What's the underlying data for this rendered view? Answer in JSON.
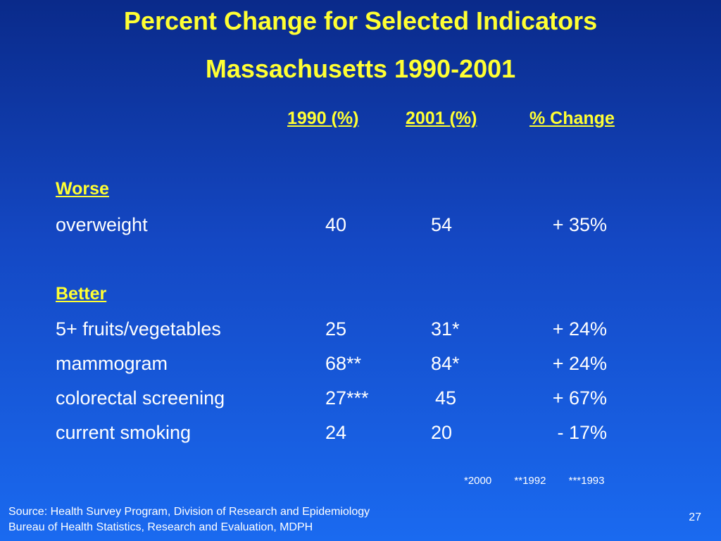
{
  "title_line1": "Percent Change for Selected Indicators",
  "title_line2": "Massachusetts 1990-2001",
  "columns": {
    "c1990": "1990 (%)",
    "c2001": "2001 (%)",
    "change": "% Change"
  },
  "sections": [
    {
      "heading": "Worse",
      "rows": [
        {
          "label": "overweight",
          "v1990": "40",
          "v2001": "54",
          "change": "+ 35%"
        }
      ]
    },
    {
      "heading": "Better",
      "rows": [
        {
          "label": "5+ fruits/vegetables",
          "v1990": "25",
          "v2001": "31*",
          "change": "+ 24%"
        },
        {
          "label": "mammogram",
          "v1990": "68**",
          "v2001": "84*",
          "change": "+ 24%"
        },
        {
          "label": "colorectal screening",
          "v1990": "27***",
          "v2001": "45",
          "change": "+ 67%"
        },
        {
          "label": "current smoking",
          "v1990": "24",
          "v2001": "20",
          "change": "- 17%"
        }
      ]
    }
  ],
  "footnotes": [
    "*2000",
    "**1992",
    "***1993"
  ],
  "source_line1": "Source: Health Survey Program, Division of Research and Epidemiology",
  "source_line2": "Bureau of Health Statistics, Research and Evaluation, MDPH",
  "page_number": "27",
  "colors": {
    "title": "#ffff33",
    "text": "#ffffff",
    "background_top": "#0a2a8a",
    "background_bottom": "#1a6af0"
  }
}
